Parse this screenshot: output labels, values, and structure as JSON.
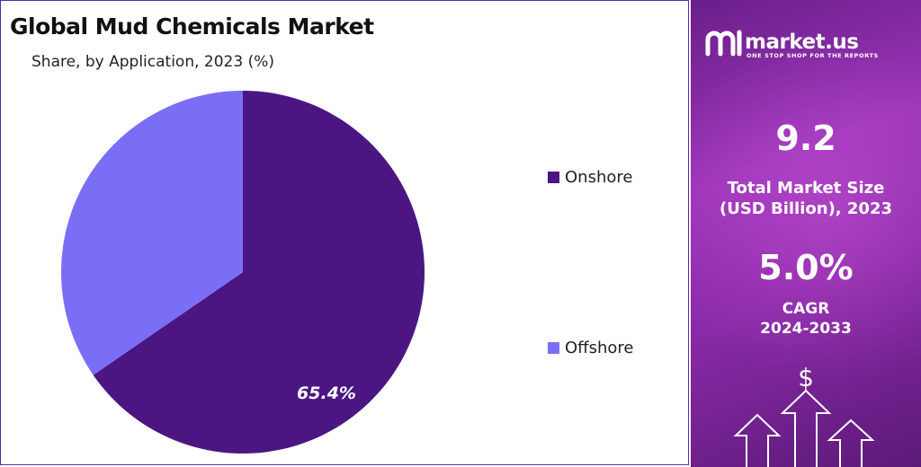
{
  "chart_data": {
    "type": "pie",
    "title": "Global Mud Chemicals Market",
    "subtitle": "Share, by Application, 2023 (%)",
    "slices": [
      {
        "name": "Onshore",
        "value": 65.4,
        "color": "#4b1682",
        "label": "65.4%"
      },
      {
        "name": "Offshore",
        "value": 34.6,
        "color": "#7b6ef6",
        "label": ""
      }
    ],
    "legend_position": "right"
  },
  "sidebar": {
    "logo_text": "market.us",
    "logo_tagline": "ONE STOP SHOP FOR THE REPORTS",
    "market_size_value": "9.2",
    "market_size_label_line1": "Total Market Size",
    "market_size_label_line2": "(USD Billion), 2023",
    "cagr_value": "5.0%",
    "cagr_label_line1": "CAGR",
    "cagr_label_line2": "2024-2033",
    "dollar_symbol": "$"
  },
  "colors": {
    "onshore": "#4b1682",
    "offshore": "#7b6ef6",
    "panel_border": "#5a2ca0"
  }
}
